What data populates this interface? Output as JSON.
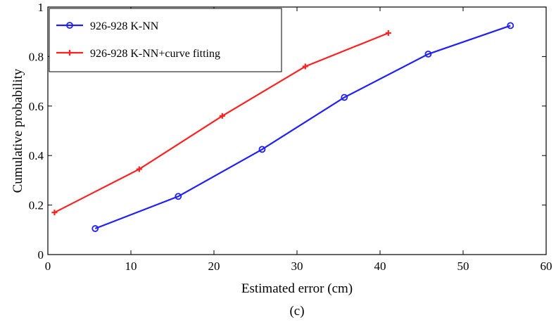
{
  "chart_data": {
    "type": "line",
    "xlabel": "Estimated error (cm)",
    "ylabel": "Cumulative probability",
    "caption": "(c)",
    "xlim": [
      0,
      60
    ],
    "ylim": [
      0,
      1
    ],
    "xticks": [
      "0",
      "10",
      "20",
      "30",
      "40",
      "50",
      "60"
    ],
    "yticks": [
      "0",
      "0.2",
      "0.4",
      "0.6",
      "0.8",
      "1"
    ],
    "grid": false,
    "legend_position": "top-left",
    "series": [
      {
        "name": "926-928 K-NN",
        "color": "#1f1fff",
        "marker": "circle",
        "x": [
          5.7,
          15.7,
          25.8,
          35.7,
          45.8,
          55.7
        ],
        "y": [
          0.105,
          0.235,
          0.425,
          0.635,
          0.81,
          0.925
        ]
      },
      {
        "name": "926-928 K-NN+curve fitting",
        "color": "#ff2020",
        "marker": "plus",
        "x": [
          0.8,
          11.0,
          21.0,
          31.0,
          41.0
        ],
        "y": [
          0.17,
          0.345,
          0.56,
          0.76,
          0.895
        ]
      }
    ]
  }
}
